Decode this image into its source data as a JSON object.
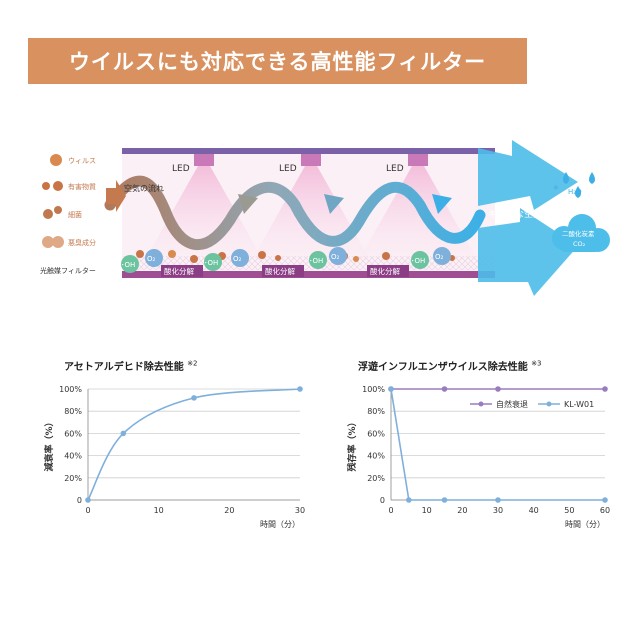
{
  "banner": {
    "title": "ウイルスにも対応できる高性能フィルター"
  },
  "diagram": {
    "legend": [
      {
        "label": "ウィルス",
        "color": "#d98a4e"
      },
      {
        "label": "有害物質",
        "color": "#c97447"
      },
      {
        "label": "細菌",
        "color": "#c0794f"
      },
      {
        "label": "悪臭成分",
        "color": "#e0a986"
      }
    ],
    "air_flow_label": "空気の流れ",
    "led_label": "LED",
    "filter_label": "光触媒フィルター",
    "decompose_label": "酸化分解",
    "oh_label": "･OH",
    "o2_label": "O₂",
    "clean_air_label": "キレイな空気",
    "water_label": "H₂O",
    "co2_line1": "二酸化炭素",
    "co2_line2": "CO₂"
  },
  "chart_data": [
    {
      "type": "line",
      "title": "アセトアルデヒド除去性能",
      "note": "※2",
      "xlabel": "時間（分）",
      "ylabel": "減衰率（%）",
      "xlim": [
        0,
        30
      ],
      "ylim": [
        0,
        100
      ],
      "xticks": [
        "0",
        "10",
        "20",
        "30"
      ],
      "yticks": [
        "0",
        "20%",
        "40%",
        "60%",
        "80%",
        "100%"
      ],
      "grid": true,
      "series": [
        {
          "color": "#7fb0dc",
          "x": [
            0,
            5,
            15,
            30
          ],
          "y": [
            0,
            60,
            92,
            100
          ]
        }
      ]
    },
    {
      "type": "line",
      "title": "浮遊インフルエンザウイルス除去性能",
      "note": "※3",
      "xlabel": "時間（分）",
      "ylabel": "残存率（%）",
      "xlim": [
        0,
        60
      ],
      "ylim": [
        0,
        100
      ],
      "xticks": [
        "0",
        "10",
        "20",
        "30",
        "40",
        "50",
        "60"
      ],
      "yticks": [
        "0",
        "20%",
        "40%",
        "60%",
        "80%",
        "100%"
      ],
      "grid": true,
      "legend_position": "top-right",
      "series": [
        {
          "name": "自然衰退",
          "color": "#9b7bbf",
          "x": [
            0,
            15,
            30,
            60
          ],
          "y": [
            100,
            100,
            100,
            100
          ]
        },
        {
          "name": "KL-W01",
          "color": "#7fb0dc",
          "x": [
            0,
            5,
            15,
            30,
            60
          ],
          "y": [
            100,
            0,
            0,
            0,
            0
          ]
        }
      ]
    }
  ]
}
